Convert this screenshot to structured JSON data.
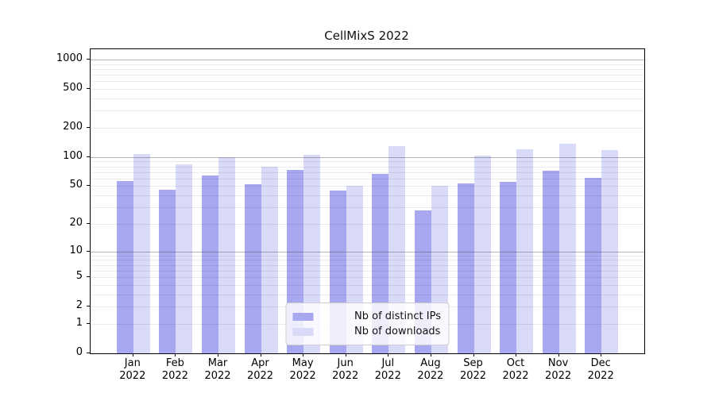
{
  "chart_data": {
    "type": "bar",
    "title": "CellMixS 2022",
    "categories": [
      "Jan 2022",
      "Feb 2022",
      "Mar 2022",
      "Apr 2022",
      "May 2022",
      "Jun 2022",
      "Jul 2022",
      "Aug 2022",
      "Sep 2022",
      "Oct 2022",
      "Nov 2022",
      "Dec 2022"
    ],
    "x_tick_months": [
      "Jan",
      "Feb",
      "Mar",
      "Apr",
      "May",
      "Jun",
      "Jul",
      "Aug",
      "Sep",
      "Oct",
      "Nov",
      "Dec"
    ],
    "x_tick_year": "2022",
    "series": [
      {
        "name": "Nb of distinct IPs",
        "color": "#a8a8f0",
        "values": [
          57,
          46,
          64,
          52,
          74,
          45,
          67,
          28,
          53,
          55,
          72,
          61
        ]
      },
      {
        "name": "Nb of downloads",
        "color": "#d9d9f8",
        "values": [
          108,
          84,
          100,
          80,
          105,
          50,
          131,
          50,
          103,
          120,
          137,
          118
        ]
      }
    ],
    "xlabel": "",
    "ylabel": "",
    "y_scale": "log10(value+1)",
    "y_ticks": [
      0,
      1,
      2,
      5,
      10,
      20,
      50,
      100,
      200,
      500,
      1000
    ],
    "ylim": [
      0,
      1274
    ],
    "grid": {
      "orientation": "horizontal",
      "minor_color": "#eaeaea",
      "major_color": "#9a9a9a",
      "major_values": [
        10,
        100,
        1000
      ]
    },
    "legend_position": "lower center"
  }
}
